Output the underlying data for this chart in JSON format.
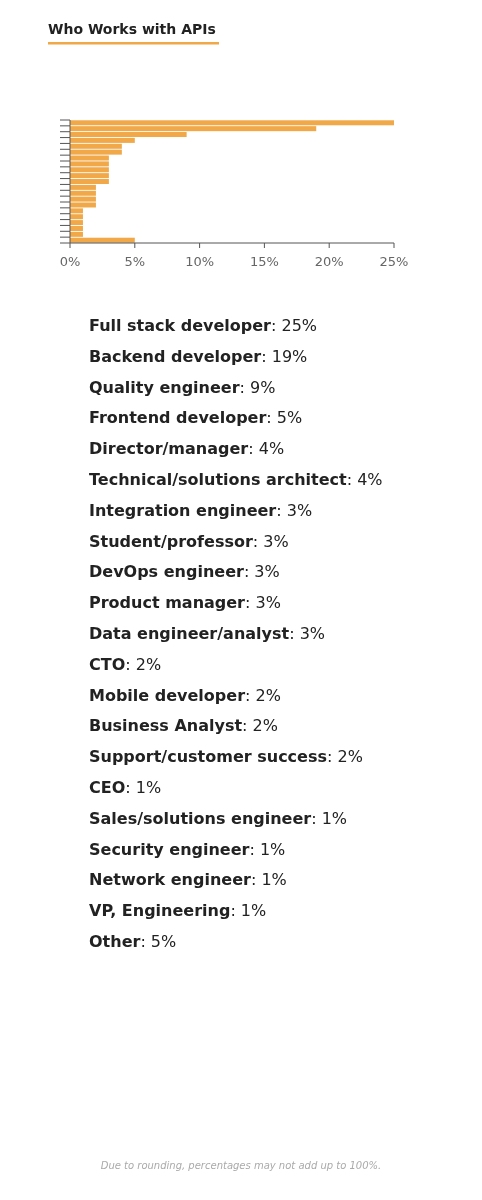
{
  "chart_data": {
    "type": "bar",
    "orientation": "horizontal",
    "title": "Who Works with APIs",
    "categories": [
      null,
      null,
      null,
      null,
      null,
      null,
      null,
      null,
      null,
      null,
      null,
      null,
      null,
      null,
      null,
      null,
      null,
      null,
      null,
      null,
      null
    ],
    "values": [
      25,
      19,
      9,
      5,
      4,
      4,
      3,
      3,
      3,
      3,
      3,
      2,
      2,
      2,
      2,
      1,
      1,
      1,
      1,
      1,
      5
    ],
    "color": "#f0a848",
    "xlim": [
      0,
      25
    ],
    "xticks": [
      {
        "value": 0,
        "label": "0%"
      },
      {
        "value": 5,
        "label": "5%"
      },
      {
        "value": 10,
        "label": "10%"
      },
      {
        "value": 15,
        "label": "15%"
      },
      {
        "value": 20,
        "label": "20%"
      },
      {
        "value": 25,
        "label": "25%"
      }
    ],
    "tick_labels": "x",
    "annotations": [
      "Full stack developer: 25%",
      "Backend developer: 19%",
      "Quality engineer: 9%",
      "Frontend developer: 5%",
      "Director/manager: 4%",
      "Technical/solutions architect: 4%",
      "Integration engineer: 3%",
      "Student/professor: 3%",
      "DevOps engineer: 3%",
      "Product manager: 3%",
      "Data engineer/analyst: 3%",
      "CTO: 2%",
      "Mobile developer: 2%",
      "Business Analyst: 2%",
      "Support/customer success: 2%",
      "CEO: 1%",
      "Sales/solutions engineer: 1%",
      "Security engineer: 1%",
      "Network engineer: 1%",
      "VP, Engineering: 1%",
      "Other: 5%",
      "Due to rounding, percentages may not add up to 100%."
    ]
  }
}
